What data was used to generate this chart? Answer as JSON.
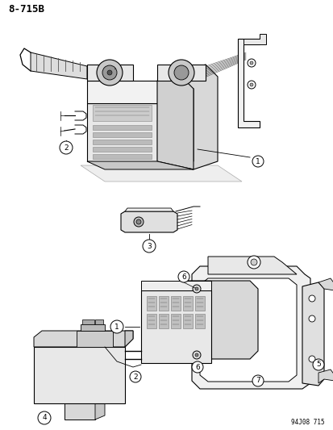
{
  "title": "8-715B",
  "footer": "94J08 715",
  "background_color": "#ffffff",
  "line_color": "#000000",
  "fig_width": 4.14,
  "fig_height": 5.33,
  "dpi": 100
}
